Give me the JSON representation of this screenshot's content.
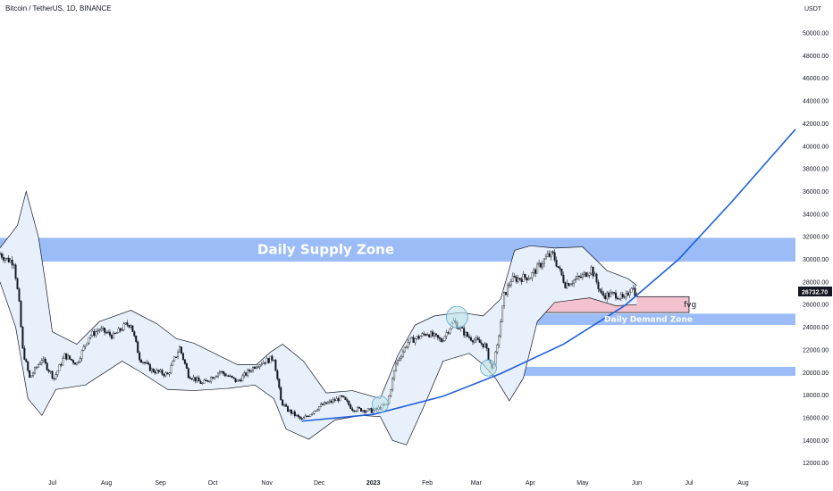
{
  "header": {
    "title": "Bitcoin / TetherUS, 1D, BINANCE"
  },
  "colors": {
    "supply_zone": "#9bbcf6",
    "demand_zone": "#9bbcf6",
    "fvg_fill": "#f4c2cf",
    "fvg_border": "#131722",
    "bands_fill": "#e8f1fb",
    "bands_line": "#131722",
    "curve": "#1f5fdc",
    "circle_fill": "#bde3ea",
    "circle_stroke": "#5fa6c8",
    "candle": "#131722",
    "price_tag_bg": "#131722"
  },
  "chart_data": {
    "type": "candlestick",
    "symbol": "Bitcoin / TetherUS",
    "interval": "1D",
    "exchange": "BINANCE",
    "y_unit_label": "USDT",
    "ylim": [
      11500,
      51500
    ],
    "y_ticks": [
      12000,
      14000,
      16000,
      18000,
      20000,
      22000,
      24000,
      26000,
      28000,
      30000,
      32000,
      34000,
      36000,
      38000,
      40000,
      42000,
      44000,
      46000,
      48000,
      50000
    ],
    "y_tick_labels": [
      "12000.00",
      "14000.00",
      "16000.00",
      "18000.00",
      "20000.00",
      "22000.00",
      "24000.00",
      "26000.00",
      "28000.00",
      "30000.00",
      "32000.00",
      "34000.00",
      "36000.00",
      "38000.00",
      "40000.00",
      "42000.00",
      "44000.00",
      "46000.00",
      "48000.00",
      "50000.00"
    ],
    "x_range": [
      "2022-06-01",
      "2023-08-31"
    ],
    "x_ticks": [
      {
        "date": "2022-07-01",
        "label": "Jul"
      },
      {
        "date": "2022-08-01",
        "label": "Aug"
      },
      {
        "date": "2022-09-01",
        "label": "Sep"
      },
      {
        "date": "2022-10-01",
        "label": "Oct"
      },
      {
        "date": "2022-11-01",
        "label": "Nov"
      },
      {
        "date": "2022-12-01",
        "label": "Dec"
      },
      {
        "date": "2023-01-01",
        "label": "2023"
      },
      {
        "date": "2023-02-01",
        "label": "Feb"
      },
      {
        "date": "2023-03-01",
        "label": "Mar"
      },
      {
        "date": "2023-04-01",
        "label": "Apr"
      },
      {
        "date": "2023-05-01",
        "label": "May"
      },
      {
        "date": "2023-06-01",
        "label": "Jun"
      },
      {
        "date": "2023-07-01",
        "label": "Jul"
      },
      {
        "date": "2023-08-01",
        "label": "Aug"
      }
    ],
    "last_price": 26732.7,
    "last_price_label": "26732.70",
    "price_path": [
      {
        "date": "2022-06-01",
        "price": 30500
      },
      {
        "date": "2022-06-05",
        "price": 30000
      },
      {
        "date": "2022-06-09",
        "price": 29800
      },
      {
        "date": "2022-06-12",
        "price": 26000
      },
      {
        "date": "2022-06-14",
        "price": 22000
      },
      {
        "date": "2022-06-18",
        "price": 19500
      },
      {
        "date": "2022-06-25",
        "price": 21200
      },
      {
        "date": "2022-07-02",
        "price": 19500
      },
      {
        "date": "2022-07-08",
        "price": 21500
      },
      {
        "date": "2022-07-15",
        "price": 20800
      },
      {
        "date": "2022-07-22",
        "price": 23200
      },
      {
        "date": "2022-07-28",
        "price": 23800
      },
      {
        "date": "2022-08-05",
        "price": 23200
      },
      {
        "date": "2022-08-12",
        "price": 24200
      },
      {
        "date": "2022-08-15",
        "price": 24300
      },
      {
        "date": "2022-08-20",
        "price": 21300
      },
      {
        "date": "2022-08-27",
        "price": 20200
      },
      {
        "date": "2022-09-05",
        "price": 19800
      },
      {
        "date": "2022-09-12",
        "price": 22200
      },
      {
        "date": "2022-09-17",
        "price": 19800
      },
      {
        "date": "2022-09-25",
        "price": 19000
      },
      {
        "date": "2022-10-05",
        "price": 20100
      },
      {
        "date": "2022-10-15",
        "price": 19200
      },
      {
        "date": "2022-10-26",
        "price": 20700
      },
      {
        "date": "2022-11-05",
        "price": 21300
      },
      {
        "date": "2022-11-09",
        "price": 17500
      },
      {
        "date": "2022-11-12",
        "price": 16800
      },
      {
        "date": "2022-11-21",
        "price": 15800
      },
      {
        "date": "2022-12-01",
        "price": 17000
      },
      {
        "date": "2022-12-14",
        "price": 17800
      },
      {
        "date": "2022-12-20",
        "price": 16800
      },
      {
        "date": "2023-01-01",
        "price": 16600
      },
      {
        "date": "2023-01-09",
        "price": 17200
      },
      {
        "date": "2023-01-14",
        "price": 20800
      },
      {
        "date": "2023-01-21",
        "price": 22700
      },
      {
        "date": "2023-02-01",
        "price": 23500
      },
      {
        "date": "2023-02-09",
        "price": 22800
      },
      {
        "date": "2023-02-16",
        "price": 24500
      },
      {
        "date": "2023-02-24",
        "price": 23200
      },
      {
        "date": "2023-03-06",
        "price": 22400
      },
      {
        "date": "2023-03-10",
        "price": 20300
      },
      {
        "date": "2023-03-13",
        "price": 22200
      },
      {
        "date": "2023-03-17",
        "price": 26800
      },
      {
        "date": "2023-03-21",
        "price": 28200
      },
      {
        "date": "2023-04-01",
        "price": 28500
      },
      {
        "date": "2023-04-11",
        "price": 30300
      },
      {
        "date": "2023-04-14",
        "price": 30400
      },
      {
        "date": "2023-04-21",
        "price": 27800
      },
      {
        "date": "2023-05-01",
        "price": 28500
      },
      {
        "date": "2023-05-06",
        "price": 29200
      },
      {
        "date": "2023-05-12",
        "price": 26800
      },
      {
        "date": "2023-05-20",
        "price": 26900
      },
      {
        "date": "2023-05-25",
        "price": 26400
      },
      {
        "date": "2023-05-29",
        "price": 27700
      },
      {
        "date": "2023-06-01",
        "price": 26732
      }
    ],
    "bollinger_upper": [
      {
        "date": "2022-06-01",
        "price": 31000
      },
      {
        "date": "2022-06-11",
        "price": 33000
      },
      {
        "date": "2022-06-16",
        "price": 36000
      },
      {
        "date": "2022-06-23",
        "price": 32000
      },
      {
        "date": "2022-06-27",
        "price": 28000
      },
      {
        "date": "2022-07-01",
        "price": 23600
      },
      {
        "date": "2022-07-15",
        "price": 22500
      },
      {
        "date": "2022-07-28",
        "price": 24500
      },
      {
        "date": "2022-08-15",
        "price": 25500
      },
      {
        "date": "2022-08-30",
        "price": 24300
      },
      {
        "date": "2022-09-10",
        "price": 23000
      },
      {
        "date": "2022-09-20",
        "price": 22600
      },
      {
        "date": "2022-10-15",
        "price": 20700
      },
      {
        "date": "2022-10-26",
        "price": 20700
      },
      {
        "date": "2022-11-03",
        "price": 21800
      },
      {
        "date": "2022-11-10",
        "price": 22500
      },
      {
        "date": "2022-11-22",
        "price": 21000
      },
      {
        "date": "2022-12-05",
        "price": 18200
      },
      {
        "date": "2022-12-20",
        "price": 18400
      },
      {
        "date": "2023-01-05",
        "price": 17700
      },
      {
        "date": "2023-01-15",
        "price": 21500
      },
      {
        "date": "2023-01-25",
        "price": 24200
      },
      {
        "date": "2023-02-05",
        "price": 25000
      },
      {
        "date": "2023-02-20",
        "price": 25300
      },
      {
        "date": "2023-03-05",
        "price": 25000
      },
      {
        "date": "2023-03-15",
        "price": 26500
      },
      {
        "date": "2023-03-23",
        "price": 30800
      },
      {
        "date": "2023-04-01",
        "price": 31200
      },
      {
        "date": "2023-04-15",
        "price": 31000
      },
      {
        "date": "2023-05-01",
        "price": 31100
      },
      {
        "date": "2023-05-15",
        "price": 29000
      },
      {
        "date": "2023-05-27",
        "price": 28300
      },
      {
        "date": "2023-06-01",
        "price": 27700
      }
    ],
    "bollinger_lower": [
      {
        "date": "2022-06-01",
        "price": 28000
      },
      {
        "date": "2022-06-10",
        "price": 24000
      },
      {
        "date": "2022-06-17",
        "price": 17700
      },
      {
        "date": "2022-06-25",
        "price": 16200
      },
      {
        "date": "2022-07-03",
        "price": 18500
      },
      {
        "date": "2022-07-20",
        "price": 18900
      },
      {
        "date": "2022-08-10",
        "price": 21000
      },
      {
        "date": "2022-08-20",
        "price": 20100
      },
      {
        "date": "2022-09-05",
        "price": 18500
      },
      {
        "date": "2022-09-20",
        "price": 18400
      },
      {
        "date": "2022-10-10",
        "price": 18600
      },
      {
        "date": "2022-10-25",
        "price": 18900
      },
      {
        "date": "2022-11-05",
        "price": 17700
      },
      {
        "date": "2022-11-12",
        "price": 15000
      },
      {
        "date": "2022-11-25",
        "price": 14100
      },
      {
        "date": "2022-12-10",
        "price": 15800
      },
      {
        "date": "2022-12-25",
        "price": 16200
      },
      {
        "date": "2023-01-05",
        "price": 16100
      },
      {
        "date": "2023-01-12",
        "price": 14000
      },
      {
        "date": "2023-01-20",
        "price": 13600
      },
      {
        "date": "2023-01-30",
        "price": 17000
      },
      {
        "date": "2023-02-10",
        "price": 21000
      },
      {
        "date": "2023-02-25",
        "price": 21700
      },
      {
        "date": "2023-03-05",
        "price": 20700
      },
      {
        "date": "2023-03-12",
        "price": 19500
      },
      {
        "date": "2023-03-20",
        "price": 17500
      },
      {
        "date": "2023-03-28",
        "price": 19500
      },
      {
        "date": "2023-04-05",
        "price": 24500
      },
      {
        "date": "2023-04-15",
        "price": 26200
      },
      {
        "date": "2023-05-05",
        "price": 26600
      },
      {
        "date": "2023-05-20",
        "price": 25900
      },
      {
        "date": "2023-06-01",
        "price": 26000
      }
    ],
    "zones": [
      {
        "label": "Daily Supply Zone",
        "x_start": "2022-06-01",
        "x_end": "2023-08-31",
        "y_low": 29800,
        "y_high": 31900
      },
      {
        "label": "Daily Demand Zone",
        "x_start": "2023-03-20",
        "x_end": "2023-08-31",
        "y_low": 24200,
        "y_high": 25200
      },
      {
        "label": "",
        "x_start": "2023-03-12",
        "x_end": "2023-08-31",
        "y_low": 19700,
        "y_high": 20500
      },
      {
        "label": "fvg",
        "x_start": "2023-03-20",
        "x_end": "2023-07-01",
        "y_low": 25300,
        "y_high": 26700
      }
    ],
    "trend_curve": [
      {
        "date": "2022-11-21",
        "price": 15700
      },
      {
        "date": "2023-01-01",
        "price": 16300
      },
      {
        "date": "2023-02-10",
        "price": 17900
      },
      {
        "date": "2023-03-15",
        "price": 19900
      },
      {
        "date": "2023-04-20",
        "price": 22500
      },
      {
        "date": "2023-05-25",
        "price": 25900
      },
      {
        "date": "2023-06-25",
        "price": 30000
      },
      {
        "date": "2023-07-25",
        "price": 35000
      },
      {
        "date": "2023-08-31",
        "price": 41500
      }
    ],
    "circles": [
      {
        "date": "2023-01-05",
        "price": 17200
      },
      {
        "date": "2023-02-18",
        "price": 24900
      },
      {
        "date": "2023-03-08",
        "price": 20400
      }
    ]
  }
}
